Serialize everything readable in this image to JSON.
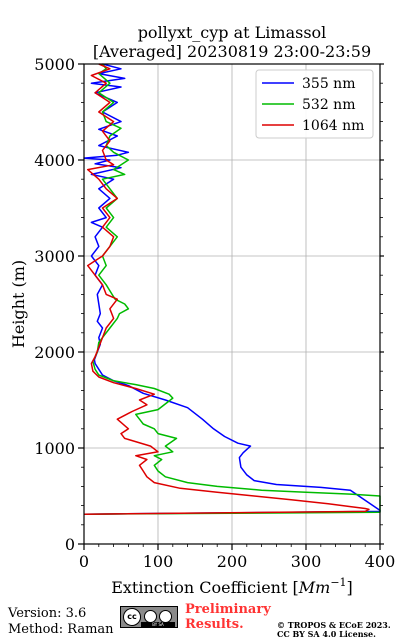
{
  "chart_data": {
    "type": "line",
    "title_line1": "pollyxt_cyp at Limassol",
    "title_line2": "[Averaged] 20230819 23:00-23:59",
    "xlabel": "Extinction Coefficient [",
    "xlabel_unit": "Mm",
    "xlabel_exp": "−1",
    "xlabel_end": "]",
    "ylabel": "Height (m)",
    "xlim": [
      0,
      400
    ],
    "ylim": [
      0,
      5000
    ],
    "xticks": [
      0,
      100,
      200,
      300,
      400
    ],
    "yticks": [
      0,
      1000,
      2000,
      3000,
      4000,
      5000
    ],
    "grid": true,
    "legend_position": "top-right",
    "series": [
      {
        "name": "355 nm",
        "color": "#0000ff",
        "points": [
          [
            0,
            310
          ],
          [
            400,
            340
          ],
          [
            400,
            350
          ],
          [
            360,
            560
          ],
          [
            320,
            590
          ],
          [
            260,
            620
          ],
          [
            230,
            660
          ],
          [
            220,
            720
          ],
          [
            212,
            800
          ],
          [
            210,
            900
          ],
          [
            215,
            950
          ],
          [
            225,
            1020
          ],
          [
            208,
            1050
          ],
          [
            190,
            1120
          ],
          [
            175,
            1200
          ],
          [
            160,
            1300
          ],
          [
            140,
            1420
          ],
          [
            110,
            1500
          ],
          [
            80,
            1570
          ],
          [
            60,
            1650
          ],
          [
            40,
            1700
          ],
          [
            25,
            1760
          ],
          [
            20,
            1820
          ],
          [
            15,
            1880
          ],
          [
            14,
            1920
          ],
          [
            18,
            2000
          ],
          [
            22,
            2080
          ],
          [
            20,
            2150
          ],
          [
            25,
            2250
          ],
          [
            18,
            2320
          ],
          [
            22,
            2400
          ],
          [
            20,
            2500
          ],
          [
            18,
            2600
          ],
          [
            25,
            2700
          ],
          [
            15,
            2800
          ],
          [
            20,
            2900
          ],
          [
            10,
            3000
          ],
          [
            20,
            3100
          ],
          [
            15,
            3200
          ],
          [
            25,
            3300
          ],
          [
            10,
            3350
          ],
          [
            30,
            3400
          ],
          [
            20,
            3500
          ],
          [
            35,
            3600
          ],
          [
            20,
            3700
          ],
          [
            40,
            3800
          ],
          [
            10,
            3850
          ],
          [
            50,
            3920
          ],
          [
            15,
            3960
          ],
          [
            35,
            4000
          ],
          [
            0,
            4020
          ],
          [
            45,
            4050
          ],
          [
            60,
            4080
          ],
          [
            20,
            4150
          ],
          [
            45,
            4250
          ],
          [
            20,
            4320
          ],
          [
            50,
            4400
          ],
          [
            25,
            4500
          ],
          [
            45,
            4600
          ],
          [
            15,
            4700
          ],
          [
            50,
            4760
          ],
          [
            10,
            4800
          ],
          [
            55,
            4850
          ],
          [
            20,
            4900
          ],
          [
            50,
            4950
          ],
          [
            25,
            5000
          ]
        ]
      },
      {
        "name": "532 nm",
        "color": "#00bb00",
        "points": [
          [
            0,
            310
          ],
          [
            400,
            330
          ],
          [
            400,
            340
          ],
          [
            400,
            500
          ],
          [
            360,
            520
          ],
          [
            300,
            540
          ],
          [
            240,
            560
          ],
          [
            180,
            600
          ],
          [
            140,
            640
          ],
          [
            110,
            700
          ],
          [
            100,
            760
          ],
          [
            95,
            820
          ],
          [
            105,
            880
          ],
          [
            95,
            920
          ],
          [
            120,
            960
          ],
          [
            110,
            1020
          ],
          [
            125,
            1100
          ],
          [
            100,
            1150
          ],
          [
            95,
            1200
          ],
          [
            80,
            1250
          ],
          [
            75,
            1300
          ],
          [
            70,
            1350
          ],
          [
            100,
            1400
          ],
          [
            120,
            1520
          ],
          [
            115,
            1560
          ],
          [
            95,
            1620
          ],
          [
            70,
            1660
          ],
          [
            40,
            1700
          ],
          [
            20,
            1760
          ],
          [
            15,
            1820
          ],
          [
            12,
            1900
          ],
          [
            18,
            2000
          ],
          [
            20,
            2100
          ],
          [
            25,
            2150
          ],
          [
            35,
            2250
          ],
          [
            45,
            2350
          ],
          [
            48,
            2400
          ],
          [
            60,
            2450
          ],
          [
            55,
            2500
          ],
          [
            42,
            2550
          ],
          [
            38,
            2600
          ],
          [
            30,
            2700
          ],
          [
            20,
            2800
          ],
          [
            30,
            2900
          ],
          [
            25,
            3000
          ],
          [
            35,
            3100
          ],
          [
            45,
            3200
          ],
          [
            30,
            3300
          ],
          [
            40,
            3400
          ],
          [
            30,
            3500
          ],
          [
            45,
            3600
          ],
          [
            35,
            3700
          ],
          [
            25,
            3800
          ],
          [
            55,
            3850
          ],
          [
            40,
            3900
          ],
          [
            60,
            4000
          ],
          [
            40,
            4080
          ],
          [
            30,
            4150
          ],
          [
            35,
            4250
          ],
          [
            50,
            4330
          ],
          [
            30,
            4400
          ],
          [
            25,
            4500
          ],
          [
            40,
            4600
          ],
          [
            20,
            4700
          ],
          [
            35,
            4800
          ],
          [
            20,
            4900
          ],
          [
            30,
            4950
          ],
          [
            25,
            5000
          ]
        ]
      },
      {
        "name": "1064 nm",
        "color": "#dd0000",
        "points": [
          [
            0,
            310
          ],
          [
            380,
            340
          ],
          [
            385,
            360
          ],
          [
            380,
            370
          ],
          [
            360,
            390
          ],
          [
            330,
            420
          ],
          [
            280,
            460
          ],
          [
            230,
            500
          ],
          [
            180,
            540
          ],
          [
            130,
            580
          ],
          [
            95,
            640
          ],
          [
            85,
            700
          ],
          [
            80,
            760
          ],
          [
            75,
            820
          ],
          [
            85,
            880
          ],
          [
            70,
            920
          ],
          [
            100,
            960
          ],
          [
            90,
            1020
          ],
          [
            55,
            1100
          ],
          [
            50,
            1150
          ],
          [
            60,
            1200
          ],
          [
            45,
            1300
          ],
          [
            65,
            1380
          ],
          [
            85,
            1450
          ],
          [
            75,
            1500
          ],
          [
            95,
            1560
          ],
          [
            70,
            1620
          ],
          [
            40,
            1680
          ],
          [
            20,
            1740
          ],
          [
            12,
            1800
          ],
          [
            10,
            1880
          ],
          [
            15,
            1950
          ],
          [
            20,
            2050
          ],
          [
            25,
            2150
          ],
          [
            30,
            2250
          ],
          [
            40,
            2350
          ],
          [
            35,
            2450
          ],
          [
            45,
            2550
          ],
          [
            30,
            2600
          ],
          [
            25,
            2700
          ],
          [
            15,
            2800
          ],
          [
            5,
            2900
          ],
          [
            15,
            2950
          ],
          [
            25,
            3000
          ],
          [
            35,
            3100
          ],
          [
            40,
            3200
          ],
          [
            25,
            3300
          ],
          [
            35,
            3400
          ],
          [
            25,
            3500
          ],
          [
            45,
            3600
          ],
          [
            30,
            3700
          ],
          [
            20,
            3800
          ],
          [
            5,
            3900
          ],
          [
            40,
            3950
          ],
          [
            30,
            4000
          ],
          [
            25,
            4100
          ],
          [
            35,
            4200
          ],
          [
            25,
            4300
          ],
          [
            40,
            4400
          ],
          [
            20,
            4500
          ],
          [
            35,
            4600
          ],
          [
            15,
            4700
          ],
          [
            30,
            4800
          ],
          [
            10,
            4880
          ],
          [
            35,
            4950
          ],
          [
            20,
            5000
          ]
        ]
      }
    ]
  },
  "footer": {
    "version": "Version: 3.6",
    "method": "Method: Raman",
    "preliminary_1": "Preliminary",
    "preliminary_2": "Results.",
    "license_1": "© TROPOS & ECoE 2023.",
    "license_2": "CC BY SA 4.0 License.",
    "cc_badge_text": "cc",
    "cc_strip_text": "BY SA"
  }
}
